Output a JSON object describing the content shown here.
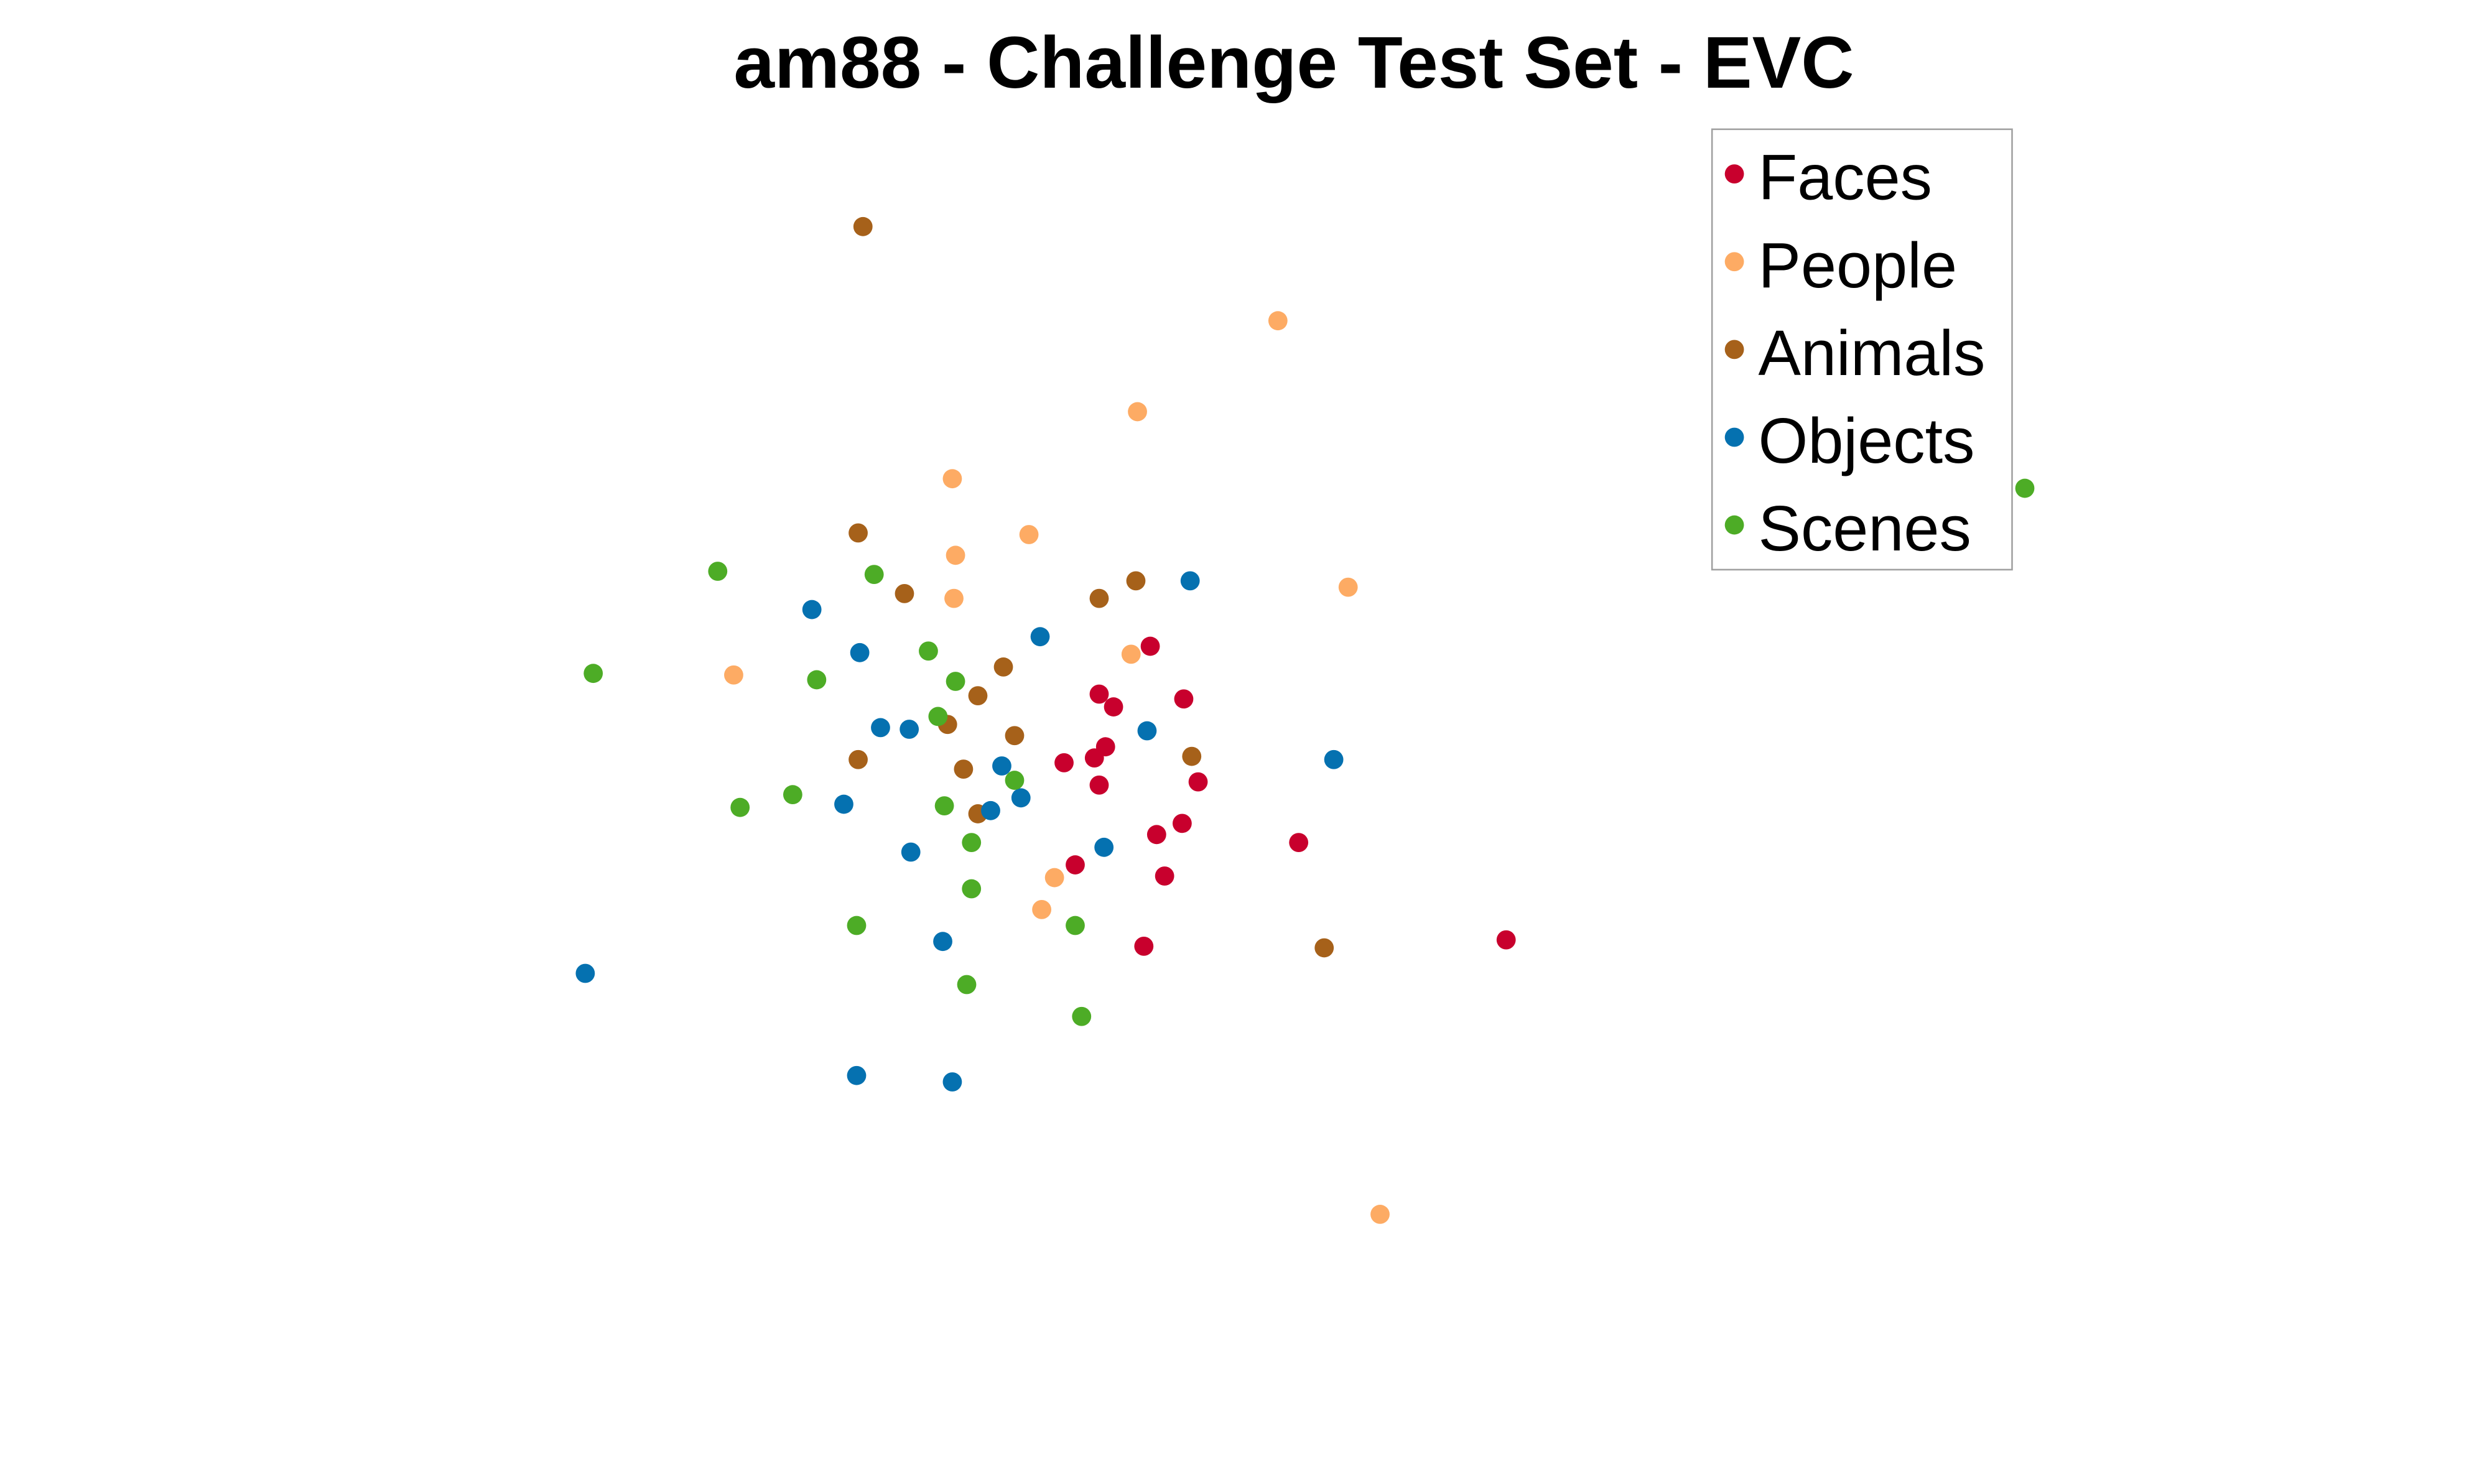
{
  "chart_data": {
    "type": "scatter",
    "title": "am88 - Challenge Test Set - EVC",
    "xlabel": "",
    "ylabel": "",
    "axes_visible": false,
    "grid": false,
    "legend_position": "top-right",
    "xlim": [
      0,
      1548
    ],
    "ylim": [
      0,
      930
    ],
    "series": [
      {
        "name": "Faces",
        "color": "#C8002D",
        "points": [
          [
            714,
            525
          ],
          [
            682,
            495
          ],
          [
            691,
            487
          ],
          [
            735,
            492
          ],
          [
            686,
            462
          ],
          [
            679,
            455
          ],
          [
            660,
            452
          ],
          [
            682,
            438
          ],
          [
            744,
            440
          ],
          [
            734,
            414
          ],
          [
            718,
            407
          ],
          [
            807,
            402
          ],
          [
            667,
            388
          ],
          [
            723,
            381
          ],
          [
            710,
            337
          ],
          [
            937,
            341
          ]
        ]
      },
      {
        "name": "People",
        "color": "#FDAB64",
        "points": [
          [
            794,
            729
          ],
          [
            706,
            672
          ],
          [
            590,
            630
          ],
          [
            638,
            595
          ],
          [
            592,
            582
          ],
          [
            591,
            555
          ],
          [
            838,
            562
          ],
          [
            453,
            507
          ],
          [
            702,
            520
          ],
          [
            654,
            380
          ],
          [
            646,
            360
          ],
          [
            858,
            169
          ]
        ]
      },
      {
        "name": "Animals",
        "color": "#A6611A",
        "points": [
          [
            534,
            788
          ],
          [
            531,
            596
          ],
          [
            560,
            558
          ],
          [
            682,
            555
          ],
          [
            705,
            566
          ],
          [
            622,
            512
          ],
          [
            606,
            494
          ],
          [
            587,
            476
          ],
          [
            629,
            469
          ],
          [
            531,
            454
          ],
          [
            597,
            448
          ],
          [
            740,
            456
          ],
          [
            606,
            420
          ],
          [
            823,
            336
          ]
        ]
      },
      {
        "name": "Objects",
        "color": "#0571B0",
        "points": [
          [
            502,
            548
          ],
          [
            532,
            521
          ],
          [
            739,
            566
          ],
          [
            645,
            531
          ],
          [
            545,
            474
          ],
          [
            563,
            473
          ],
          [
            712,
            472
          ],
          [
            829,
            454
          ],
          [
            621,
            450
          ],
          [
            633,
            430
          ],
          [
            614,
            422
          ],
          [
            522,
            426
          ],
          [
            685,
            399
          ],
          [
            564,
            396
          ],
          [
            584,
            340
          ],
          [
            360,
            320
          ],
          [
            530,
            256
          ],
          [
            590,
            252
          ]
        ]
      },
      {
        "name": "Scenes",
        "color": "#4DAC26",
        "points": [
          [
            1262,
            624
          ],
          [
            443,
            572
          ],
          [
            541,
            570
          ],
          [
            575,
            522
          ],
          [
            365,
            508
          ],
          [
            505,
            504
          ],
          [
            592,
            503
          ],
          [
            581,
            481
          ],
          [
            629,
            441
          ],
          [
            490,
            432
          ],
          [
            457,
            424
          ],
          [
            585,
            425
          ],
          [
            602,
            402
          ],
          [
            602,
            373
          ],
          [
            530,
            350
          ],
          [
            667,
            350
          ],
          [
            599,
            313
          ],
          [
            671,
            293
          ]
        ]
      }
    ]
  }
}
